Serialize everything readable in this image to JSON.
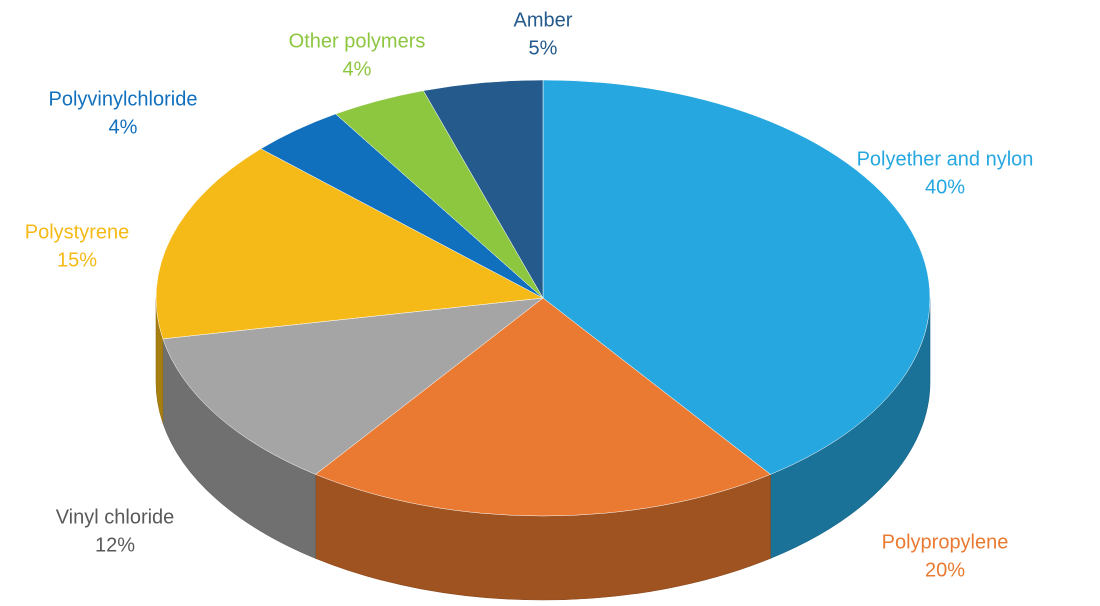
{
  "chart_data": {
    "type": "pie3d",
    "categories": [
      "Polyether and nylon",
      "Polypropylene",
      "Vinyl chloride",
      "Polystyrene",
      "Polyvinylchloride",
      "Other polymers",
      "Amber"
    ],
    "values": [
      40,
      20,
      12,
      15,
      4,
      4,
      5
    ],
    "value_labels": [
      "40%",
      "20%",
      "12%",
      "15%",
      "4%",
      "4%",
      "5%"
    ],
    "colors": [
      "#26a7e0",
      "#ea7a31",
      "#a5a5a5",
      "#f5ba17",
      "#1170be",
      "#8dc63f",
      "#245a8c"
    ],
    "label_colors": [
      "#26a7e0",
      "#ea7a31",
      "#595959",
      "#f5ba17",
      "#1170be",
      "#8dc63f",
      "#245a8c"
    ]
  }
}
